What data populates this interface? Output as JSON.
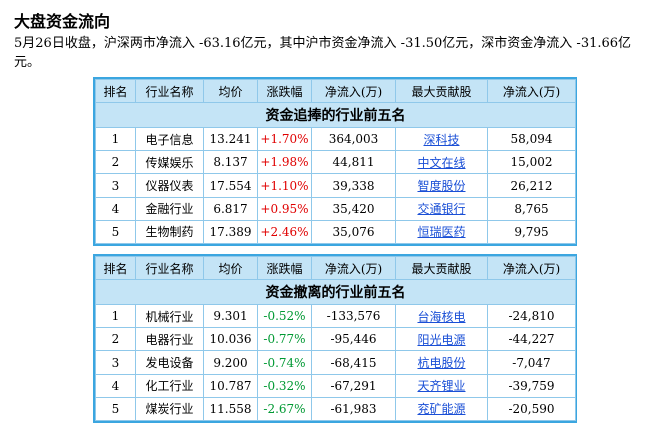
{
  "page": {
    "title": "大盘资金流向",
    "summary": "5月26日收盘，沪深两市净流入 -63.16亿元，其中沪市资金净流入 -31.50亿元，深市资金净流入 -31.66亿元。"
  },
  "colors": {
    "accent_border": "#3ba6e0",
    "header_bg": "#c4e4f6",
    "up": "#e00000",
    "down": "#009933",
    "link": "#1a4fd6"
  },
  "columns": [
    "排名",
    "行业名称",
    "均价",
    "涨跌幅",
    "净流入(万)",
    "最大贡献股",
    "净流入(万)"
  ],
  "inflow_table": {
    "title": "资金追捧的行业前五名",
    "rows": [
      [
        "1",
        "电子信息",
        "13.241",
        "+1.70%",
        "364,003",
        "深科技",
        "58,094"
      ],
      [
        "2",
        "传媒娱乐",
        "8.137",
        "+1.98%",
        "44,811",
        "中文在线",
        "15,002"
      ],
      [
        "3",
        "仪器仪表",
        "17.554",
        "+1.10%",
        "39,338",
        "智度股份",
        "26,212"
      ],
      [
        "4",
        "金融行业",
        "6.817",
        "+0.95%",
        "35,420",
        "交通银行",
        "8,765"
      ],
      [
        "5",
        "生物制药",
        "17.389",
        "+2.46%",
        "35,076",
        "恒瑞医药",
        "9,795"
      ]
    ]
  },
  "outflow_table": {
    "title": "资金撤离的行业前五名",
    "rows": [
      [
        "1",
        "机械行业",
        "9.301",
        "-0.52%",
        "-133,576",
        "台海核电",
        "-24,810"
      ],
      [
        "2",
        "电器行业",
        "10.036",
        "-0.77%",
        "-95,446",
        "阳光电源",
        "-44,227"
      ],
      [
        "3",
        "发电设备",
        "9.200",
        "-0.74%",
        "-68,415",
        "杭电股份",
        "-7,047"
      ],
      [
        "4",
        "化工行业",
        "10.787",
        "-0.32%",
        "-67,291",
        "天齐锂业",
        "-39,759"
      ],
      [
        "5",
        "煤炭行业",
        "11.558",
        "-2.67%",
        "-61,983",
        "兖矿能源",
        "-20,590"
      ]
    ]
  }
}
